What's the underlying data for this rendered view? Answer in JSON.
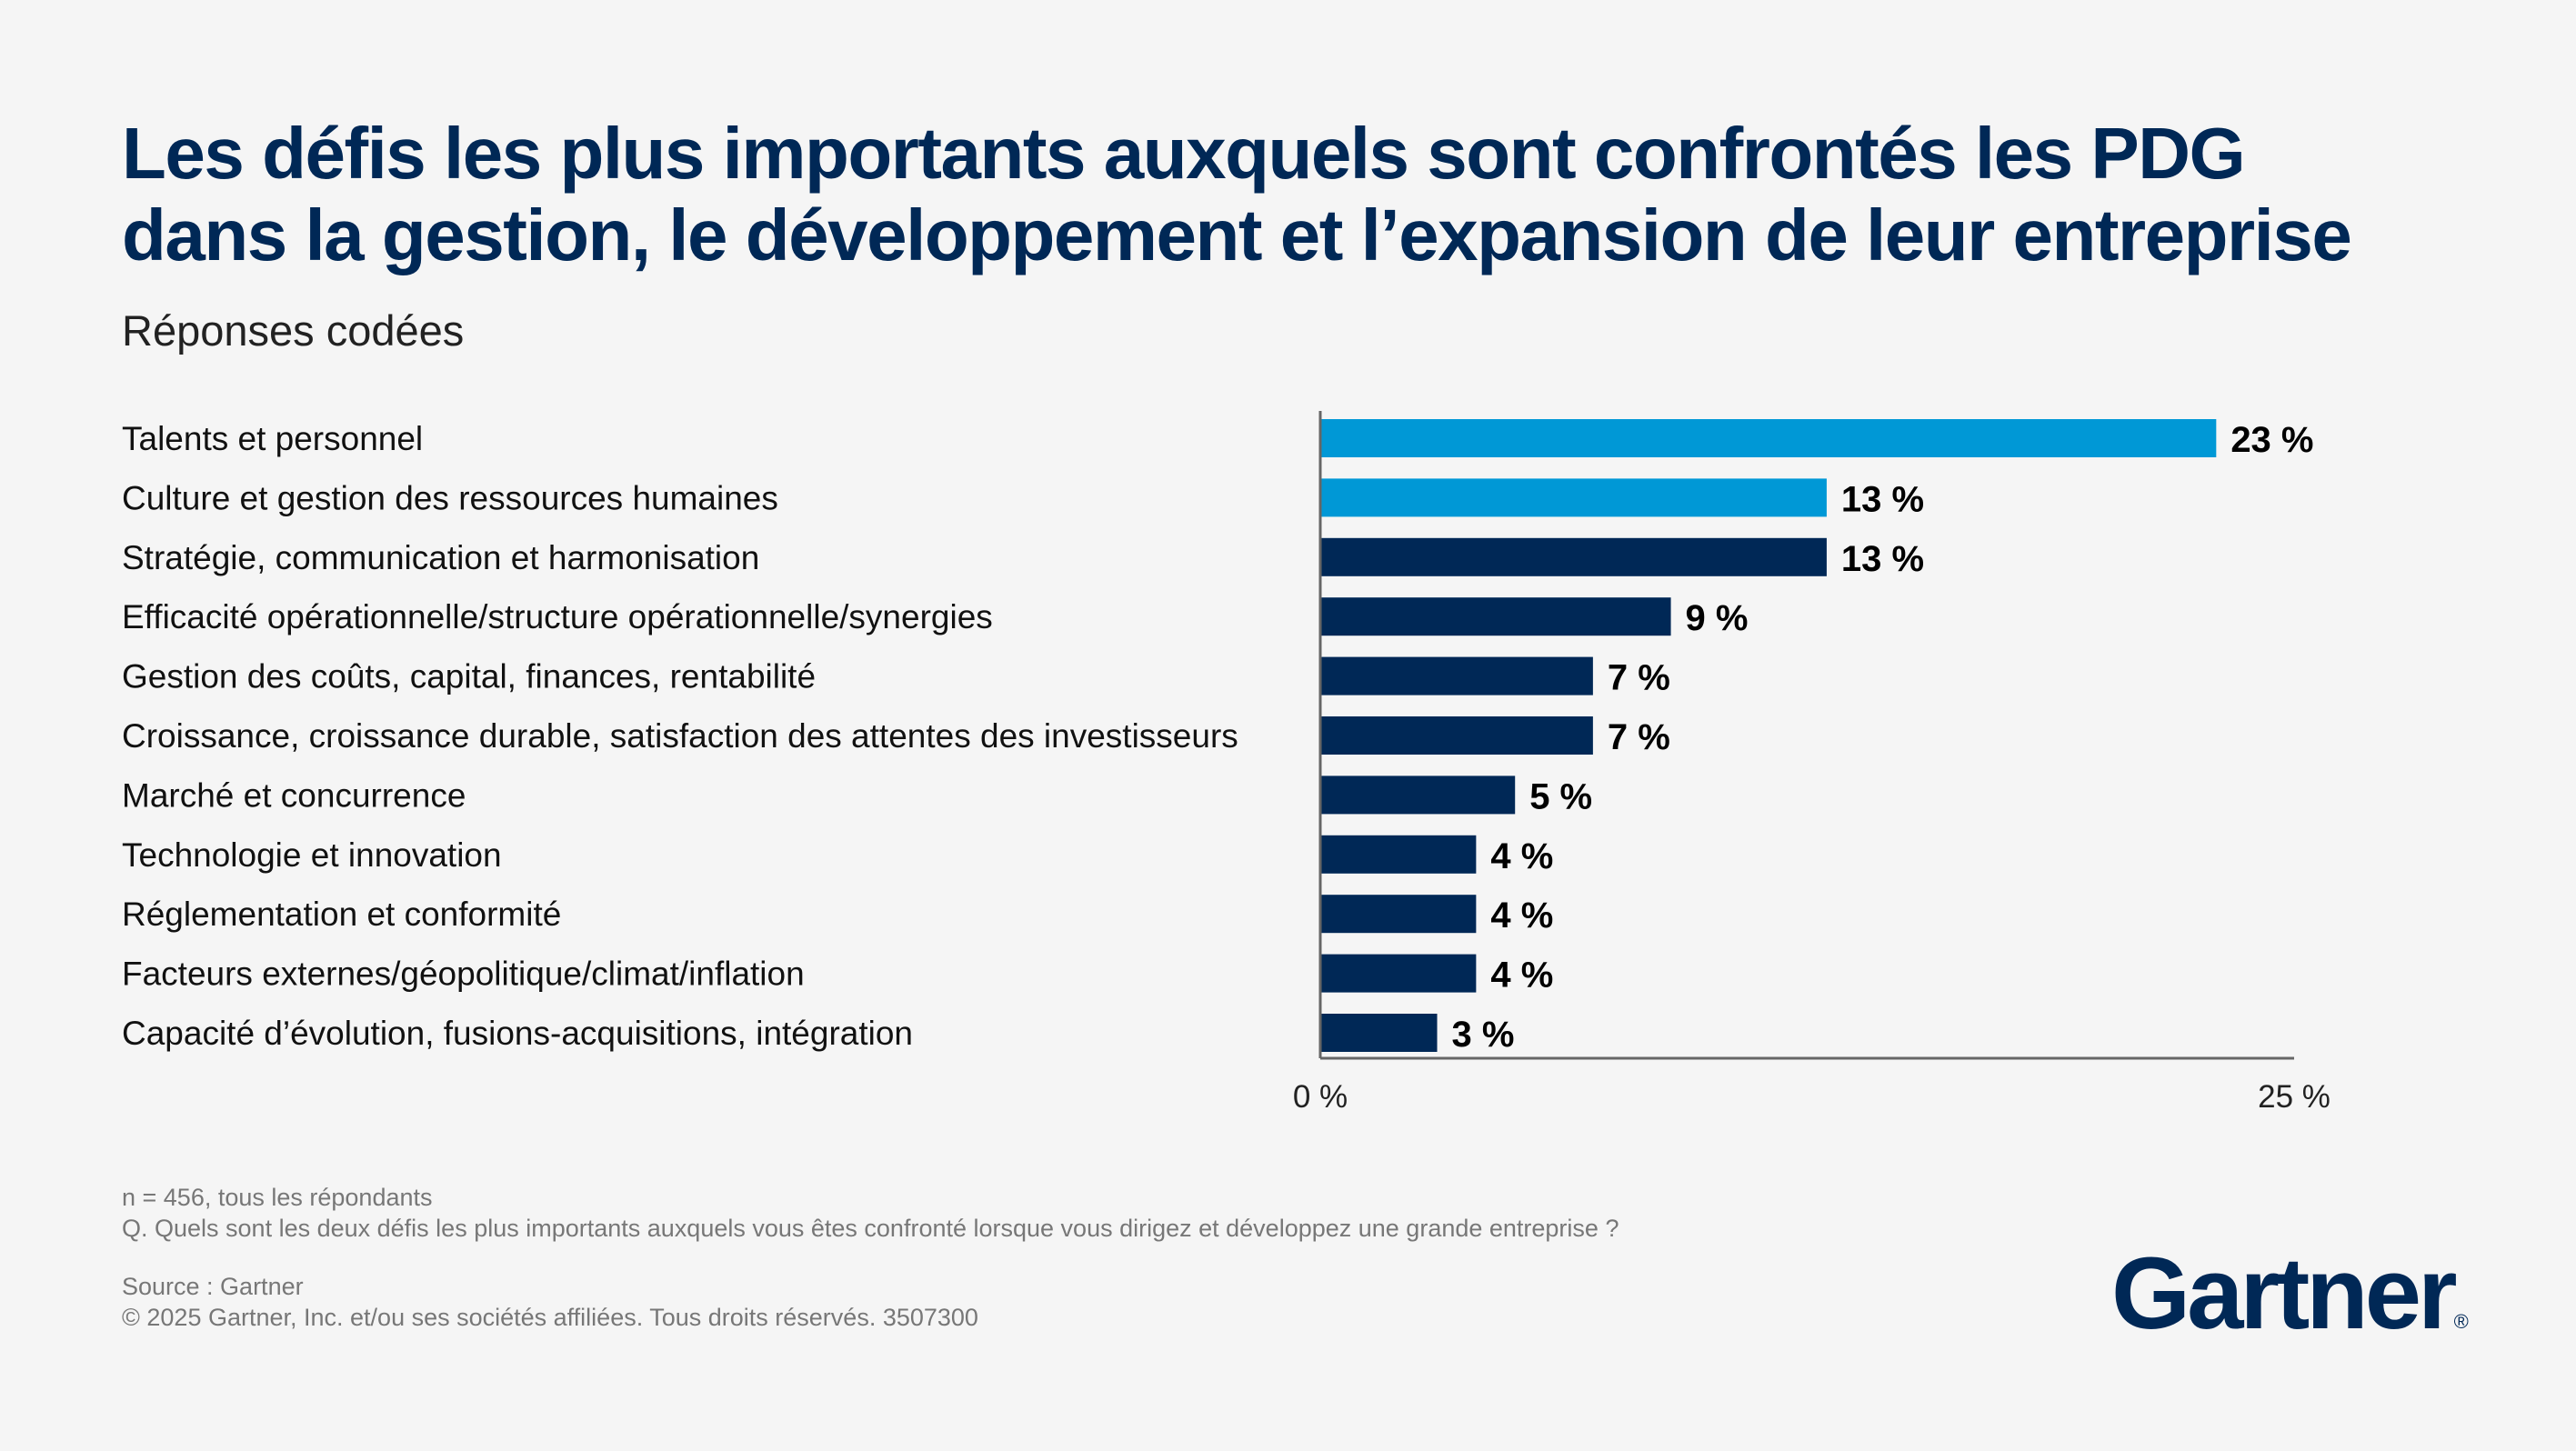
{
  "title_line1": "Les défis les plus importants auxquels sont confrontés les PDG",
  "title_line2": "dans la gestion, le développement et l’expansion de leur entreprise",
  "subtitle": "Réponses codées",
  "chart_data": {
    "type": "bar",
    "orientation": "horizontal",
    "categories": [
      "Talents et personnel",
      "Culture et gestion des ressources humaines",
      "Stratégie, communication et harmonisation",
      "Efficacité opérationnelle/structure opérationnelle/synergies",
      "Gestion des coûts, capital, finances, rentabilité",
      "Croissance, croissance durable, satisfaction des attentes des investisseurs",
      "Marché et concurrence",
      "Technologie et innovation",
      "Réglementation et conformité",
      "Facteurs externes/géopolitique/climat/inflation",
      "Capacité d’évolution, fusions-acquisitions, intégration"
    ],
    "values": [
      23,
      13,
      13,
      9,
      7,
      7,
      5,
      4,
      4,
      4,
      3
    ],
    "data_labels": [
      "23 %",
      "13 %",
      "13 %",
      "9 %",
      "7 %",
      "7 %",
      "5 %",
      "4 %",
      "4 %",
      "4 %",
      "3 %"
    ],
    "bar_colors": [
      "#0098D6",
      "#0098D6",
      "#002856",
      "#002856",
      "#002856",
      "#002856",
      "#002856",
      "#002856",
      "#002856",
      "#002856",
      "#002856"
    ],
    "xlim": [
      0,
      25
    ],
    "xtick_labels": [
      "0 %",
      "25 %"
    ],
    "grid": false
  },
  "footnotes": {
    "sample": "n = 456, tous les répondants",
    "question": "Q. Quels sont les deux défis les plus importants auxquels vous êtes confronté lorsque vous dirigez et développez une grande entreprise ?",
    "source": "Source : Gartner",
    "copyright": "© 2025 Gartner, Inc. et/ou ses sociétés affiliées. Tous droits réservés. 3507300"
  },
  "logo": {
    "text": "Gartner",
    "mark": "®",
    "color": "#002856"
  }
}
